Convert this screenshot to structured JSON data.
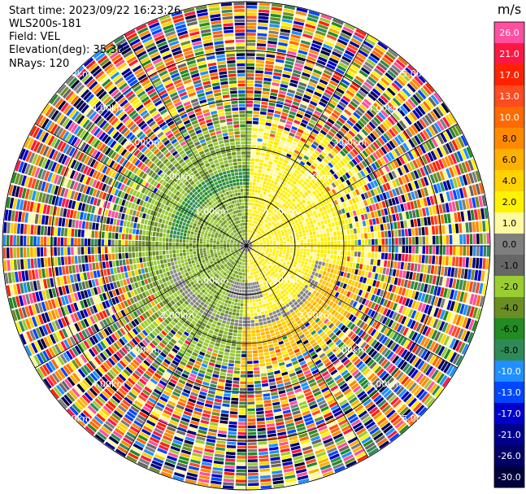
{
  "header": {
    "start_time": "Start time: 2023/09/22 16:23:26",
    "instrument": "WLS200s-181",
    "field": "Field: VEL",
    "elevation": "Elevation(deg): 35.30",
    "nrays": "NRays: 120"
  },
  "ppi": {
    "n_rays": 120,
    "n_gates": 72,
    "range_rings_km": [
      1,
      2,
      3,
      4,
      5
    ],
    "ring_labels": [
      "1.00km",
      "2.00km",
      "3.00km",
      "4.00km",
      "5.00km"
    ]
  },
  "colorbar": {
    "unit": "m/s",
    "levels": [
      "26.0",
      "21.0",
      "17.0",
      "13.0",
      "10.0",
      "8.0",
      "6.0",
      "4.0",
      "2.0",
      "1.0",
      "0.0",
      "-1.0",
      "-2.0",
      "-4.0",
      "-6.0",
      "-8.0",
      "-10.0",
      "-13.0",
      "-17.0",
      "-21.0",
      "-26.0",
      "-30.0"
    ],
    "colors": [
      "#ff4fa0",
      "#ff1744",
      "#ff2200",
      "#ff4b1f",
      "#ff6a00",
      "#ff8a00",
      "#ffb000",
      "#ffd200",
      "#fff200",
      "#fff9a0",
      "#7f7f7f",
      "#666666",
      "#9acd32",
      "#6b8e23",
      "#228b22",
      "#2e8b57",
      "#1e90ff",
      "#0046ff",
      "#0000cd",
      "#00008b",
      "#000066",
      "#00003c"
    ],
    "light_text_levels": [
      "26.0",
      "21.0",
      "17.0",
      "13.0",
      "10.0",
      "-10.0",
      "-13.0",
      "-17.0",
      "-21.0",
      "-26.0",
      "-30.0"
    ]
  }
}
